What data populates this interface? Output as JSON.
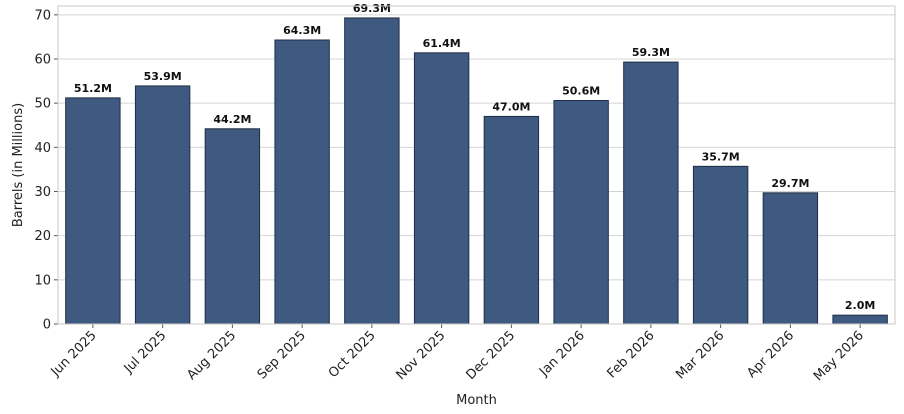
{
  "chart_data": {
    "type": "bar",
    "categories": [
      "Jun 2025",
      "Jul 2025",
      "Aug 2025",
      "Sep 2025",
      "Oct 2025",
      "Nov 2025",
      "Dec 2025",
      "Jan 2026",
      "Feb 2026",
      "Mar 2026",
      "Apr 2026",
      "May 2026"
    ],
    "values": [
      51.2,
      53.9,
      44.2,
      64.3,
      69.3,
      61.4,
      47.0,
      50.6,
      59.3,
      35.7,
      29.7,
      2.0
    ],
    "data_labels": [
      "51.2M",
      "53.9M",
      "44.2M",
      "64.3M",
      "69.3M",
      "61.4M",
      "47.0M",
      "50.6M",
      "59.3M",
      "35.7M",
      "29.7M",
      "2.0M"
    ],
    "title": "",
    "xlabel": "Month",
    "ylabel": "Barrels (in Millions)",
    "ylim": [
      0,
      72
    ],
    "yticks": [
      0,
      10,
      20,
      30,
      40,
      50,
      60,
      70
    ],
    "grid": "horizontal",
    "bar_color": "#3f5a81",
    "bar_edge_color": "#1f2d44"
  }
}
